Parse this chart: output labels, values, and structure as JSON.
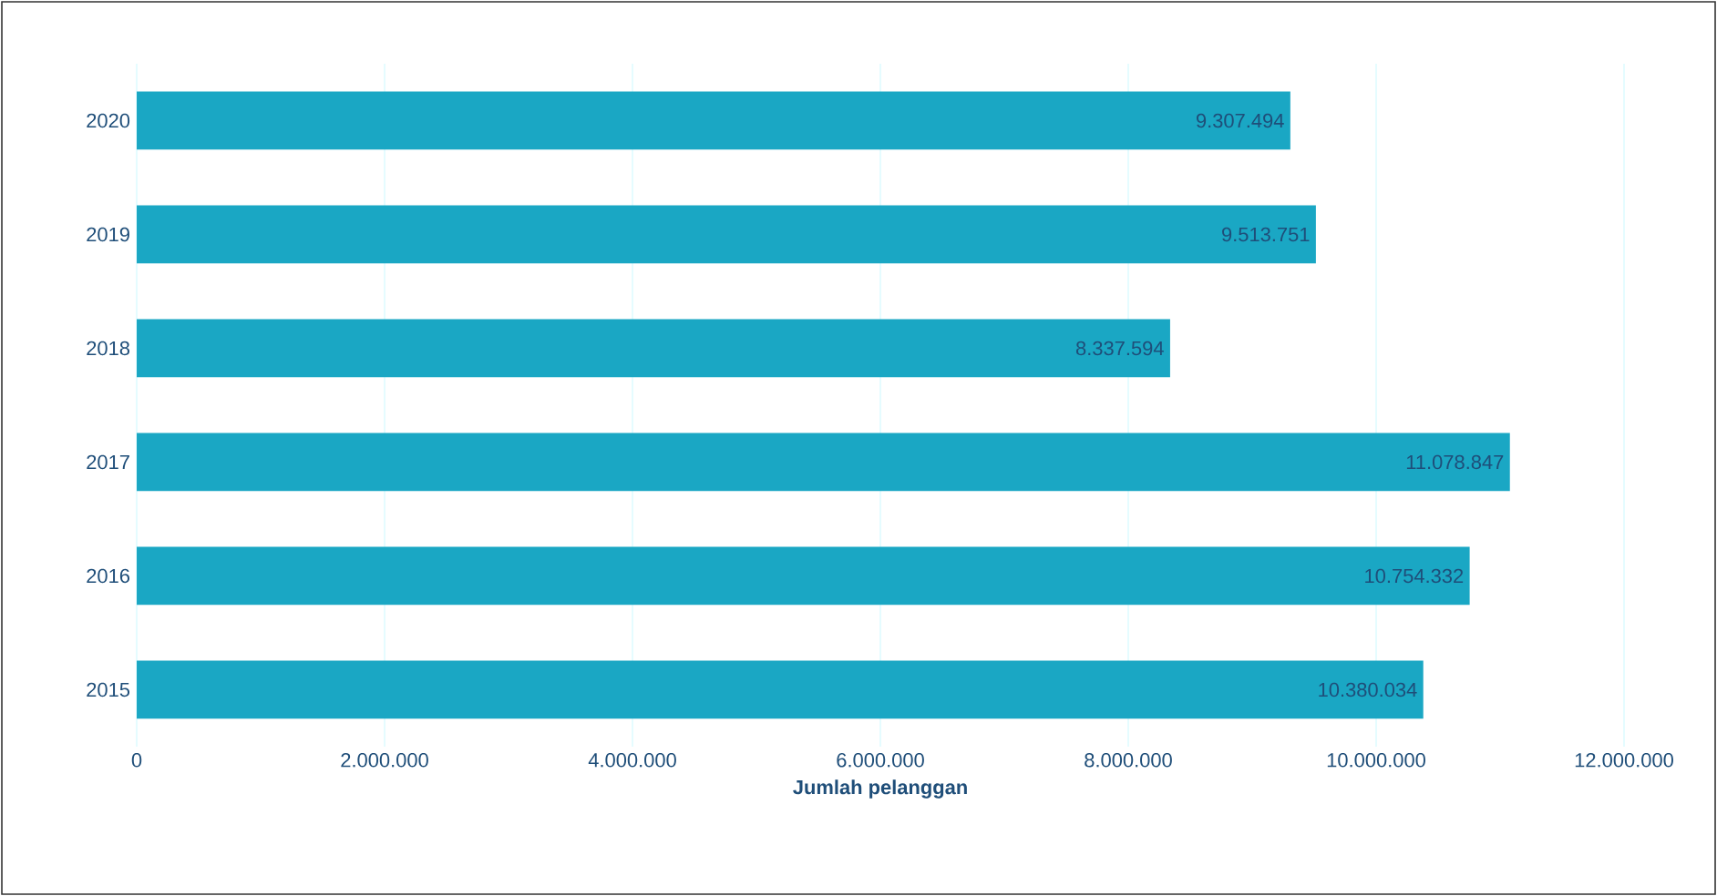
{
  "chart_data": {
    "type": "bar",
    "orientation": "horizontal",
    "xlabel": "Jumlah pelanggan",
    "categories": [
      "2020",
      "2019",
      "2018",
      "2017",
      "2016",
      "2015"
    ],
    "values": [
      9307494,
      9513751,
      8337594,
      11078847,
      10754332,
      10380034
    ],
    "value_labels": [
      "9.307.494",
      "9.513.751",
      "8.337.594",
      "11.078.847",
      "10.754.332",
      "10.380.034"
    ],
    "color": "#1aa7c4",
    "xlim": [
      0,
      12000000
    ],
    "xticks": [
      0,
      {
        "value": 2000000,
        "label": "2.000.000"
      },
      {
        "value": 4000000,
        "label": "4.000.000"
      },
      {
        "value": 6000000,
        "label": "6.000.000"
      },
      {
        "value": 8000000,
        "label": "8.000.000"
      },
      {
        "value": 10000000,
        "label": "10.000.000"
      },
      {
        "value": 12000000,
        "label": "12.000.000"
      }
    ],
    "grid": "x"
  }
}
